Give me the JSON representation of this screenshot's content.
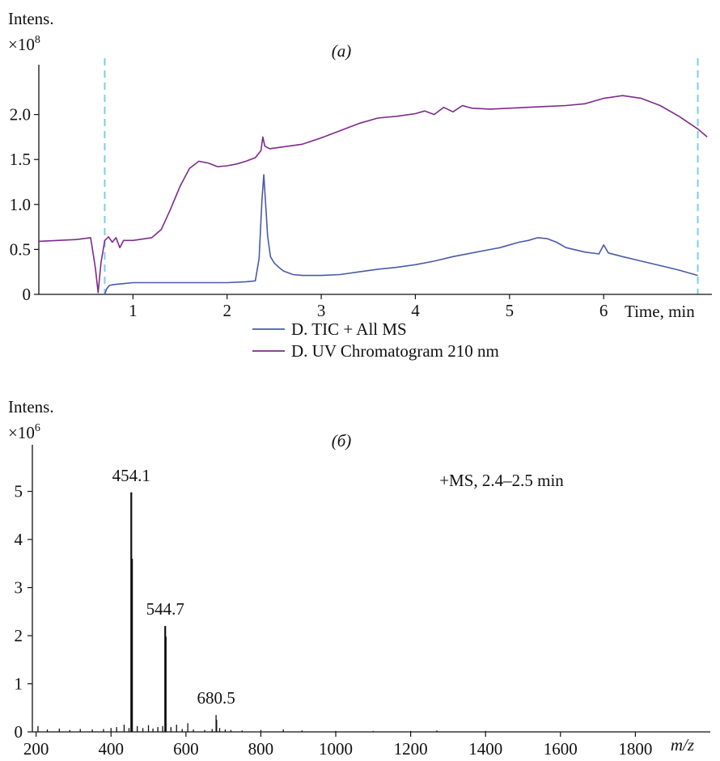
{
  "chart_data": [
    {
      "type": "line",
      "panel_label": "(a)",
      "ylabel": "Intens.",
      "y_multiplier": "×10^8",
      "xlabel": "Time, min",
      "xlim": [
        0,
        7.15
      ],
      "ylim": [
        0,
        2.5
      ],
      "x_ticks": [
        1,
        2,
        3,
        4,
        5,
        6
      ],
      "y_ticks": [
        "0",
        "0.5",
        "1.0",
        "1.5",
        "2.0"
      ],
      "markers": [
        0.7,
        7.0
      ],
      "legend": {
        "placement": "bottom-center"
      },
      "colors": {
        "tic": "#4a5aa8",
        "uv": "#7d2a8c",
        "markers": "#7fcce8",
        "axis": "#111111"
      },
      "series": [
        {
          "name": "D. TIC + All MS",
          "key": "tic",
          "x": [
            0.7,
            0.72,
            0.75,
            0.8,
            0.9,
            1.0,
            1.2,
            1.4,
            1.6,
            1.8,
            2.0,
            2.2,
            2.3,
            2.34,
            2.37,
            2.39,
            2.41,
            2.43,
            2.46,
            2.5,
            2.55,
            2.6,
            2.7,
            2.8,
            3.0,
            3.2,
            3.4,
            3.6,
            3.8,
            4.0,
            4.2,
            4.4,
            4.6,
            4.8,
            4.9,
            5.0,
            5.1,
            5.2,
            5.3,
            5.4,
            5.5,
            5.6,
            5.8,
            5.95,
            6.0,
            6.05,
            6.2,
            6.4,
            6.6,
            6.8,
            7.0
          ],
          "values": [
            0.0,
            0.06,
            0.1,
            0.11,
            0.12,
            0.13,
            0.13,
            0.13,
            0.13,
            0.13,
            0.13,
            0.14,
            0.15,
            0.4,
            1.05,
            1.33,
            1.0,
            0.65,
            0.42,
            0.35,
            0.3,
            0.26,
            0.22,
            0.21,
            0.21,
            0.22,
            0.25,
            0.28,
            0.3,
            0.33,
            0.37,
            0.42,
            0.46,
            0.5,
            0.52,
            0.55,
            0.58,
            0.6,
            0.63,
            0.62,
            0.58,
            0.52,
            0.47,
            0.45,
            0.55,
            0.46,
            0.42,
            0.37,
            0.32,
            0.27,
            0.21
          ]
        },
        {
          "name": "D. UV Chromatogram 210 nm",
          "key": "uv",
          "x": [
            0.0,
            0.2,
            0.4,
            0.55,
            0.6,
            0.63,
            0.66,
            0.7,
            0.74,
            0.78,
            0.82,
            0.86,
            0.9,
            1.0,
            1.2,
            1.3,
            1.4,
            1.5,
            1.6,
            1.7,
            1.8,
            1.9,
            2.0,
            2.1,
            2.2,
            2.3,
            2.36,
            2.38,
            2.4,
            2.45,
            2.6,
            2.8,
            3.0,
            3.2,
            3.4,
            3.6,
            3.8,
            4.0,
            4.1,
            4.2,
            4.3,
            4.4,
            4.5,
            4.6,
            4.8,
            5.0,
            5.2,
            5.4,
            5.6,
            5.8,
            6.0,
            6.2,
            6.4,
            6.6,
            6.8,
            7.0,
            7.1
          ],
          "values": [
            0.59,
            0.6,
            0.61,
            0.63,
            0.3,
            0.02,
            0.35,
            0.6,
            0.64,
            0.58,
            0.63,
            0.52,
            0.6,
            0.6,
            0.63,
            0.72,
            0.95,
            1.2,
            1.4,
            1.48,
            1.46,
            1.42,
            1.43,
            1.45,
            1.48,
            1.52,
            1.6,
            1.75,
            1.65,
            1.62,
            1.64,
            1.67,
            1.74,
            1.82,
            1.9,
            1.96,
            1.98,
            2.01,
            2.04,
            2.0,
            2.08,
            2.03,
            2.1,
            2.07,
            2.06,
            2.07,
            2.08,
            2.09,
            2.1,
            2.12,
            2.18,
            2.21,
            2.18,
            2.1,
            1.98,
            1.84,
            1.75
          ]
        }
      ]
    },
    {
      "type": "bar",
      "panel_label": "(б)",
      "ylabel": "Intens.",
      "y_multiplier": "×10^6",
      "xlabel": "m/z",
      "xlim": [
        190,
        2000
      ],
      "ylim": [
        0,
        5.8
      ],
      "x_ticks": [
        200,
        400,
        600,
        800,
        1000,
        1200,
        1400,
        1600,
        1800
      ],
      "y_ticks": [
        0,
        1,
        2,
        3,
        4,
        5
      ],
      "annotation": "+MS, 2.4–2.5 min",
      "peak_labels": [
        {
          "text": "454.1",
          "x": 454.1,
          "y": 4.98
        },
        {
          "text": "544.7",
          "x": 544.7,
          "y": 2.2
        },
        {
          "text": "680.5",
          "x": 680.5,
          "y": 0.35
        }
      ],
      "color": "#111111",
      "x": [
        205,
        230,
        262,
        290,
        318,
        350,
        380,
        400,
        415,
        435,
        448,
        454.1,
        456,
        470,
        485,
        500,
        512,
        525,
        538,
        544.7,
        546,
        560,
        575,
        590,
        605,
        620,
        650,
        670,
        680.5,
        682,
        690,
        705,
        720,
        750,
        800,
        860,
        910,
        1000,
        1100,
        1200,
        1270,
        1400
      ],
      "values": [
        0.12,
        0.05,
        0.07,
        0.04,
        0.06,
        0.05,
        0.06,
        0.08,
        0.1,
        0.15,
        0.08,
        4.98,
        3.6,
        0.12,
        0.08,
        0.14,
        0.07,
        0.1,
        0.12,
        2.2,
        1.98,
        0.1,
        0.15,
        0.06,
        0.18,
        0.05,
        0.04,
        0.06,
        0.35,
        0.25,
        0.08,
        0.05,
        0.04,
        0.03,
        0.04,
        0.05,
        0.03,
        0.02,
        0.02,
        0.02,
        0.03,
        0.02
      ]
    }
  ]
}
